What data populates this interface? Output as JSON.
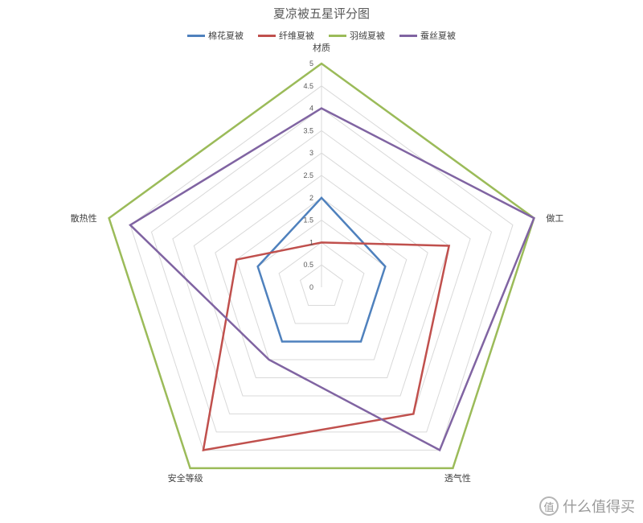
{
  "chart_data": {
    "type": "radar",
    "title": "夏凉被五星评分图",
    "axes": [
      "材质",
      "做工",
      "透气性",
      "安全等级",
      "散热性"
    ],
    "ticks": [
      "0",
      "0.5",
      "1",
      "1.5",
      "2",
      "2.5",
      "3",
      "3.5",
      "4",
      "4.5",
      "5"
    ],
    "rlim": [
      0,
      5
    ],
    "grid": true,
    "legend_position": "top",
    "series": [
      {
        "name": "棉花夏被",
        "color": "#4F81BD",
        "values": [
          2,
          1.5,
          1.5,
          1.5,
          1.5
        ]
      },
      {
        "name": "纤维夏被",
        "color": "#C0504D",
        "values": [
          1,
          3,
          3.5,
          4.5,
          2
        ]
      },
      {
        "name": "羽绒夏被",
        "color": "#9BBB59",
        "values": [
          5,
          5,
          5,
          5,
          5
        ]
      },
      {
        "name": "蚕丝夏被",
        "color": "#8064A2",
        "values": [
          4,
          5,
          4.5,
          2,
          4.5
        ]
      }
    ]
  },
  "watermark": {
    "logo_text": "值",
    "text": "什么值得买"
  }
}
